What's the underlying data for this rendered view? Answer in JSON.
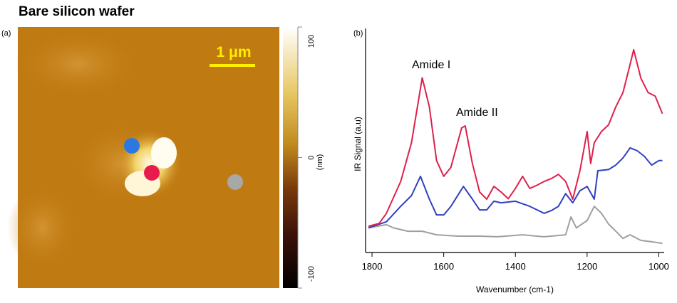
{
  "title": "Bare silicon wafer",
  "afm": {
    "panel_label": "(a)",
    "scale_bar": "1 μm",
    "colorbar": {
      "lim": [
        -100,
        100
      ],
      "ticks": [
        100,
        0,
        -100
      ],
      "unit": "(nm)"
    }
  },
  "chart_data": {
    "type": "line",
    "panel_label": "(b)",
    "x_label": "Wavenumber (cm-1)",
    "y_label": "IR Signal (a.u)",
    "annotations": [
      "Amide I",
      "Amide II"
    ],
    "xlim": [
      1818,
      985
    ],
    "xticks": [
      1800,
      1600,
      1400,
      1200,
      1000
    ],
    "ylim": [
      0,
      100
    ],
    "series": [
      {
        "color": "#e0204a",
        "x": [
          1810,
          1780,
          1760,
          1720,
          1690,
          1660,
          1640,
          1620,
          1600,
          1580,
          1550,
          1540,
          1520,
          1500,
          1480,
          1460,
          1440,
          1420,
          1400,
          1380,
          1360,
          1340,
          1320,
          1300,
          1280,
          1260,
          1240,
          1220,
          1200,
          1190,
          1180,
          1160,
          1140,
          1120,
          1100,
          1080,
          1070,
          1050,
          1030,
          1010,
          990
        ],
        "values": [
          11.7,
          13,
          17.5,
          31.7,
          49,
          78,
          65,
          41,
          34,
          38,
          55.6,
          56.5,
          39.7,
          27,
          23.8,
          29.5,
          27,
          24,
          28.6,
          34,
          28.6,
          30,
          31.7,
          33,
          34.9,
          31.7,
          23.8,
          36.5,
          54,
          39.7,
          49,
          54,
          57,
          65,
          71.4,
          84,
          90.5,
          77.8,
          71.4,
          69.8,
          62
        ]
      },
      {
        "color": "#3040c0",
        "x": [
          1810,
          1760,
          1720,
          1690,
          1665,
          1640,
          1620,
          1600,
          1580,
          1545,
          1520,
          1500,
          1480,
          1460,
          1440,
          1400,
          1360,
          1320,
          1300,
          1280,
          1260,
          1240,
          1220,
          1200,
          1180,
          1170,
          1140,
          1120,
          1100,
          1080,
          1060,
          1040,
          1020,
          1000,
          990
        ],
        "values": [
          11,
          13.7,
          20.6,
          25.4,
          34,
          23.8,
          16.8,
          16.8,
          20.6,
          29.5,
          23.8,
          19,
          19,
          22.9,
          22.2,
          22.9,
          20.6,
          17.5,
          18.7,
          20.6,
          26.3,
          22.2,
          27.6,
          29.5,
          23.8,
          36.5,
          37,
          39,
          42.2,
          46.7,
          45.4,
          42.9,
          39,
          41,
          41
        ]
      },
      {
        "color": "#a0a0a0",
        "x": [
          1810,
          1760,
          1740,
          1700,
          1660,
          1620,
          1560,
          1500,
          1450,
          1380,
          1320,
          1260,
          1245,
          1230,
          1200,
          1180,
          1160,
          1140,
          1120,
          1100,
          1080,
          1050,
          1020,
          990
        ],
        "values": [
          11,
          12.4,
          11,
          9.5,
          9.5,
          7.9,
          7.3,
          7.3,
          7,
          7.9,
          7,
          7.9,
          15.9,
          11,
          14.3,
          20.6,
          17.5,
          12.7,
          9.5,
          6.3,
          7.9,
          5.4,
          4.8,
          4.1
        ]
      }
    ]
  }
}
